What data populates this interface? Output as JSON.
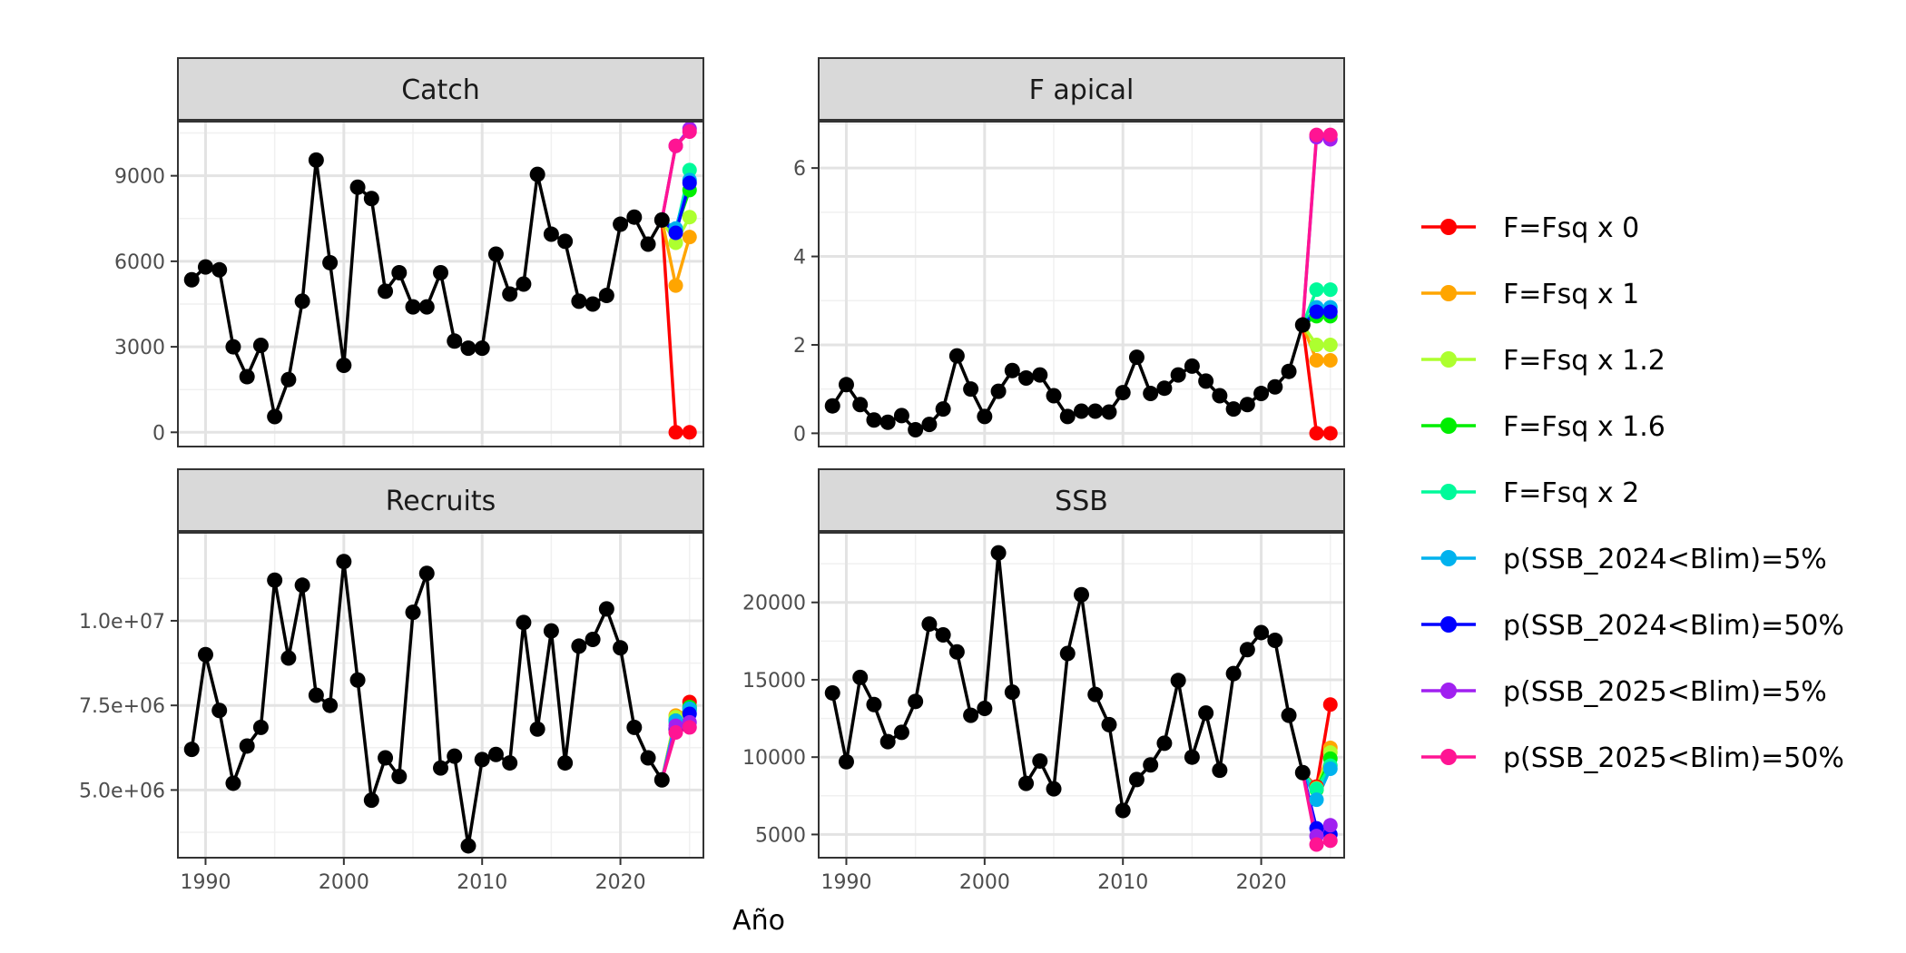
{
  "chart_data": {
    "type": "line",
    "xlabel": "Año",
    "ylabel": "",
    "legend_placement": "right",
    "grid": true,
    "x_ticks": [
      1990,
      2000,
      2010,
      2020
    ],
    "xlim": [
      1988,
      2026
    ],
    "historical_color": "#000000",
    "scenarios": [
      {
        "name": "F=Fsq x 0",
        "color": "#ff0000"
      },
      {
        "name": "F=Fsq x 1",
        "color": "#ffa500"
      },
      {
        "name": "F=Fsq x 1.2",
        "color": "#adff2f"
      },
      {
        "name": "F=Fsq x 1.6",
        "color": "#00ee00"
      },
      {
        "name": "F=Fsq x 2",
        "color": "#00fa9a"
      },
      {
        "name": "p(SSB_2024<Blim)=5%",
        "color": "#00b2ee"
      },
      {
        "name": "p(SSB_2024<Blim)=50%",
        "color": "#0000ff"
      },
      {
        "name": "p(SSB_2025<Blim)=5%",
        "color": "#a020f0"
      },
      {
        "name": "p(SSB_2025<Blim)=50%",
        "color": "#ff1493"
      }
    ],
    "panels": [
      {
        "title": "Catch",
        "ylim": [
          -500,
          10900
        ],
        "y_ticks": [
          0,
          3000,
          6000,
          9000
        ],
        "y_tick_labels": [
          "0",
          "3000",
          "6000",
          "9000"
        ],
        "years": [
          1989,
          1990,
          1991,
          1992,
          1993,
          1994,
          1995,
          1996,
          1997,
          1998,
          1999,
          2000,
          2001,
          2002,
          2003,
          2004,
          2005,
          2006,
          2007,
          2008,
          2009,
          2010,
          2011,
          2012,
          2013,
          2014,
          2015,
          2016,
          2017,
          2018,
          2019,
          2020,
          2021,
          2022,
          2023
        ],
        "values": [
          5350,
          5800,
          5700,
          3000,
          1950,
          3050,
          550,
          1850,
          4600,
          9550,
          5950,
          2350,
          8600,
          8200,
          4950,
          5600,
          4400,
          4400,
          5600,
          3200,
          2950,
          2950,
          6250,
          4850,
          5200,
          9050,
          6950,
          6700,
          4600,
          4500,
          4800,
          7300,
          7550,
          6600,
          7450
        ],
        "projection": [
          [
            0,
            0
          ],
          [
            5150,
            6850
          ],
          [
            6650,
            7550
          ],
          [
            7100,
            8500
          ],
          [
            7050,
            9200
          ],
          [
            7150,
            8850
          ],
          [
            7000,
            8750
          ],
          [
            10050,
            10650
          ],
          [
            10050,
            10550
          ]
        ]
      },
      {
        "title": "F apical",
        "ylim": [
          -0.3,
          7.05
        ],
        "y_ticks": [
          0,
          2,
          4,
          6
        ],
        "y_tick_labels": [
          "0",
          "2",
          "4",
          "6"
        ],
        "years": [
          1989,
          1990,
          1991,
          1992,
          1993,
          1994,
          1995,
          1996,
          1997,
          1998,
          1999,
          2000,
          2001,
          2002,
          2003,
          2004,
          2005,
          2006,
          2007,
          2008,
          2009,
          2010,
          2011,
          2012,
          2013,
          2014,
          2015,
          2016,
          2017,
          2018,
          2019,
          2020,
          2021,
          2022,
          2023
        ],
        "values": [
          0.62,
          1.1,
          0.65,
          0.3,
          0.25,
          0.4,
          0.08,
          0.2,
          0.55,
          1.75,
          1.0,
          0.38,
          0.95,
          1.42,
          1.25,
          1.32,
          0.85,
          0.38,
          0.5,
          0.5,
          0.48,
          0.92,
          1.72,
          0.9,
          1.02,
          1.32,
          1.52,
          1.18,
          0.85,
          0.55,
          0.65,
          0.9,
          1.05,
          1.4,
          2.45
        ],
        "projection": [
          [
            0,
            0
          ],
          [
            1.65,
            1.65
          ],
          [
            2.0,
            2.0
          ],
          [
            2.65,
            2.65
          ],
          [
            3.25,
            3.25
          ],
          [
            2.85,
            2.85
          ],
          [
            2.75,
            2.75
          ],
          [
            6.7,
            6.65
          ],
          [
            6.75,
            6.75
          ]
        ]
      },
      {
        "title": "Recruits",
        "ylim": [
          3000000,
          12600000
        ],
        "y_ticks": [
          5000000,
          7500000,
          10000000
        ],
        "y_tick_labels": [
          "5.0e+06",
          "7.5e+06",
          "1.0e+07"
        ],
        "years": [
          1989,
          1990,
          1991,
          1992,
          1993,
          1994,
          1995,
          1996,
          1997,
          1998,
          1999,
          2000,
          2001,
          2002,
          2003,
          2004,
          2005,
          2006,
          2007,
          2008,
          2009,
          2010,
          2011,
          2012,
          2013,
          2014,
          2015,
          2016,
          2017,
          2018,
          2019,
          2020,
          2021,
          2022,
          2023
        ],
        "values": [
          6200000,
          9000000,
          7350000,
          5200000,
          6300000,
          6850000,
          11200000,
          8900000,
          11050000,
          7800000,
          7500000,
          11750000,
          8250000,
          4700000,
          5950000,
          5400000,
          10250000,
          11400000,
          5650000,
          6000000,
          3350000,
          5900000,
          6050000,
          5800000,
          9950000,
          6800000,
          9700000,
          5800000,
          9250000,
          9450000,
          10350000,
          9200000,
          6850000,
          5950000,
          5300000
        ],
        "projection": [
          [
            6800000,
            7600000
          ],
          [
            7200000,
            7400000
          ],
          [
            7150000,
            7400000
          ],
          [
            7050000,
            7450000
          ],
          [
            7000000,
            7350000
          ],
          [
            7050000,
            7400000
          ],
          [
            6800000,
            7250000
          ],
          [
            6900000,
            7000000
          ],
          [
            6700000,
            6850000
          ]
        ]
      },
      {
        "title": "SSB",
        "ylim": [
          4000000,
          0
        ],
        "ylim_note": "",
        "y_ticks": [
          5000,
          10000,
          15000,
          20000
        ],
        "y_tick_labels": [
          "5000",
          "10000",
          "15000",
          "20000"
        ],
        "years": [
          1989,
          1990,
          1991,
          1992,
          1993,
          1994,
          1995,
          1996,
          1997,
          1998,
          1999,
          2000,
          2001,
          2002,
          2003,
          2004,
          2005,
          2006,
          2007,
          2008,
          2009,
          2010,
          2011,
          2012,
          2013,
          2014,
          2015,
          2016,
          2017,
          2018,
          2019,
          2020,
          2021,
          2022,
          2023
        ],
        "values": [
          14150,
          9700,
          15150,
          13400,
          11000,
          11600,
          13600,
          18600,
          17900,
          16800,
          12700,
          13150,
          23200,
          14200,
          8300,
          9750,
          7950,
          16700,
          20500,
          14050,
          12100,
          6550,
          8550,
          9500,
          10900,
          14950,
          10000,
          12850,
          9150,
          15400,
          16950,
          18050,
          17550,
          12700,
          9000
        ],
        "projection": [
          [
            8100,
            13400
          ],
          [
            8000,
            10600
          ],
          [
            7950,
            10300
          ],
          [
            7900,
            9900
          ],
          [
            7950,
            9450
          ],
          [
            7250,
            9250
          ],
          [
            5400,
            5000
          ],
          [
            4900,
            5600
          ],
          [
            4350,
            4600
          ]
        ]
      }
    ]
  }
}
